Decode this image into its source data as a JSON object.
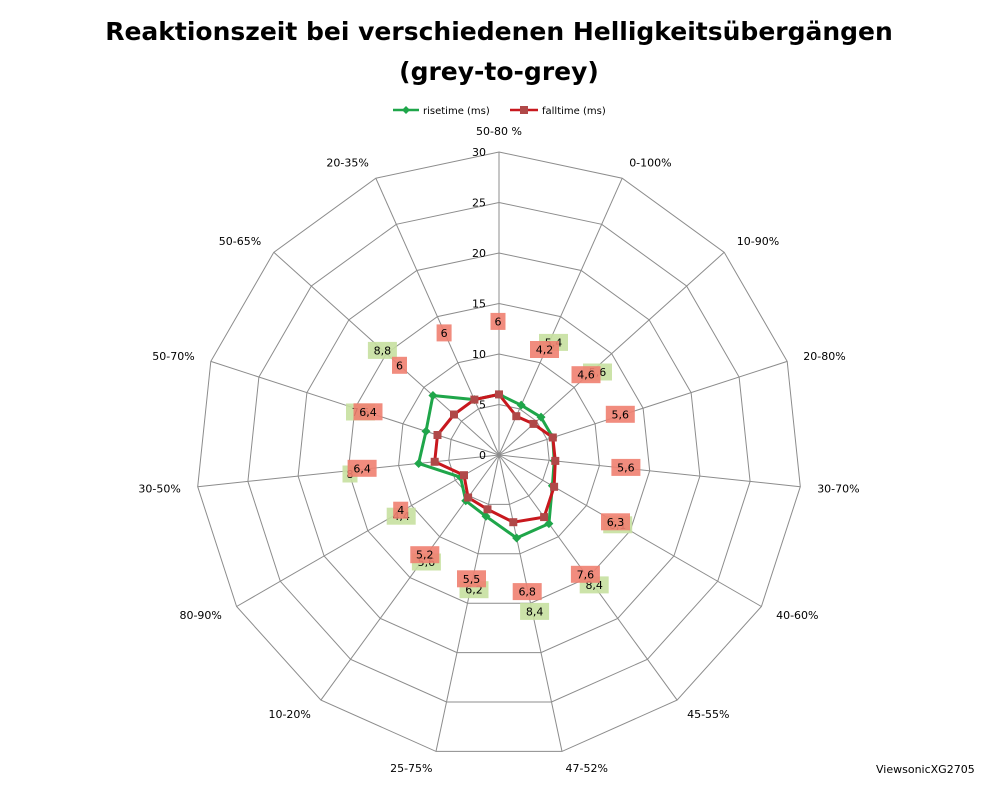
{
  "chart_data": {
    "type": "radar",
    "title_line1": "Reaktionszeit bei verschiedenen Helligkeitsübergängen",
    "title_line2": "(grey-to-grey)",
    "categories": [
      "50-80 %",
      "0-100%",
      "10-90%",
      "20-80%",
      "30-70%",
      "40-60%",
      "45-55%",
      "47-52%",
      "25-75%",
      "10-20%",
      "80-90%",
      "30-50%",
      "50-70%",
      "50-65%",
      "20-35%"
    ],
    "rlim": [
      0,
      30
    ],
    "rticks": [
      0,
      5,
      10,
      15,
      20,
      25,
      30
    ],
    "grid": true,
    "legend_position": "top",
    "series": [
      {
        "name": "risetime (ms)",
        "color": "#1fa64a",
        "label_bg": "#c6e0a0",
        "marker": "diamond",
        "values": [
          6,
          5.4,
          5.6,
          5.6,
          5.5,
          6.1,
          8.4,
          8.4,
          6.2,
          5.6,
          4.4,
          8,
          7.6,
          8.8,
          6
        ],
        "labels": [
          "",
          "5,4",
          "5,6",
          "",
          "",
          "6,1",
          "8,4",
          "8,4",
          "6,2",
          "5,6",
          "4,4",
          "8",
          "7,6",
          "8,8",
          ""
        ]
      },
      {
        "name": "falltime (ms)",
        "color": "#c8181e",
        "label_bg": "#f08070",
        "marker": "square",
        "values": [
          6,
          4.2,
          4.6,
          5.6,
          5.6,
          6.3,
          7.6,
          6.8,
          5.5,
          5.2,
          4,
          6.4,
          6.4,
          6,
          6
        ],
        "labels": [
          "6",
          "4,2",
          "4,6",
          "5,6",
          "5,6",
          "6,3",
          "7,6",
          "6,8",
          "5,5",
          "5,2",
          "4",
          "6,4",
          "6,4",
          "6",
          "6"
        ]
      }
    ]
  },
  "watermark": "ViewsonicXG2705"
}
